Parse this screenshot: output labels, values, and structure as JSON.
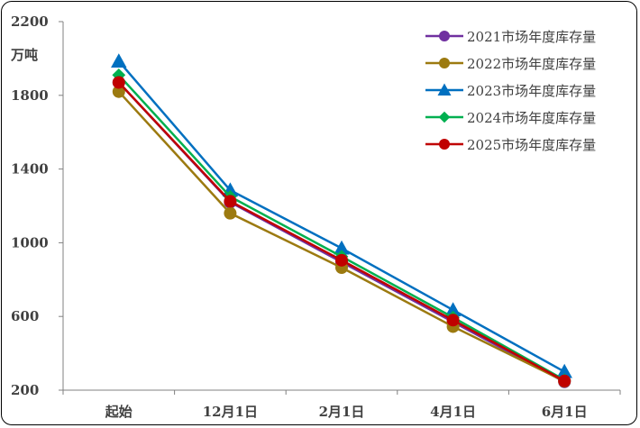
{
  "chart_data": {
    "type": "line",
    "ylabel": "万吨",
    "ylim": [
      200,
      2200
    ],
    "yticks": [
      200,
      600,
      1000,
      1400,
      1800,
      2200
    ],
    "categories": [
      "起始",
      "12月1日",
      "2月1日",
      "4月1日",
      "6月1日"
    ],
    "legend_position": "top-right",
    "grid": false,
    "series": [
      {
        "name": "2021市场年度库存量",
        "color": "#7030A0",
        "marker": "circle",
        "values": [
          1870,
          1220,
          895,
          570,
          245
        ]
      },
      {
        "name": "2022市场年度库存量",
        "color": "#9C7A10",
        "marker": "circle",
        "values": [
          1820,
          1160,
          865,
          545,
          248
        ]
      },
      {
        "name": "2023市场年度库存量",
        "color": "#0070C0",
        "marker": "triangle",
        "values": [
          1985,
          1285,
          970,
          635,
          300
        ]
      },
      {
        "name": "2024市场年度库存量",
        "color": "#00B050",
        "marker": "diamond",
        "values": [
          1910,
          1250,
          925,
          595,
          255
        ]
      },
      {
        "name": "2025市场年度库存量",
        "color": "#C00000",
        "marker": "circle",
        "values": [
          1870,
          1225,
          905,
          580,
          250
        ]
      }
    ]
  }
}
